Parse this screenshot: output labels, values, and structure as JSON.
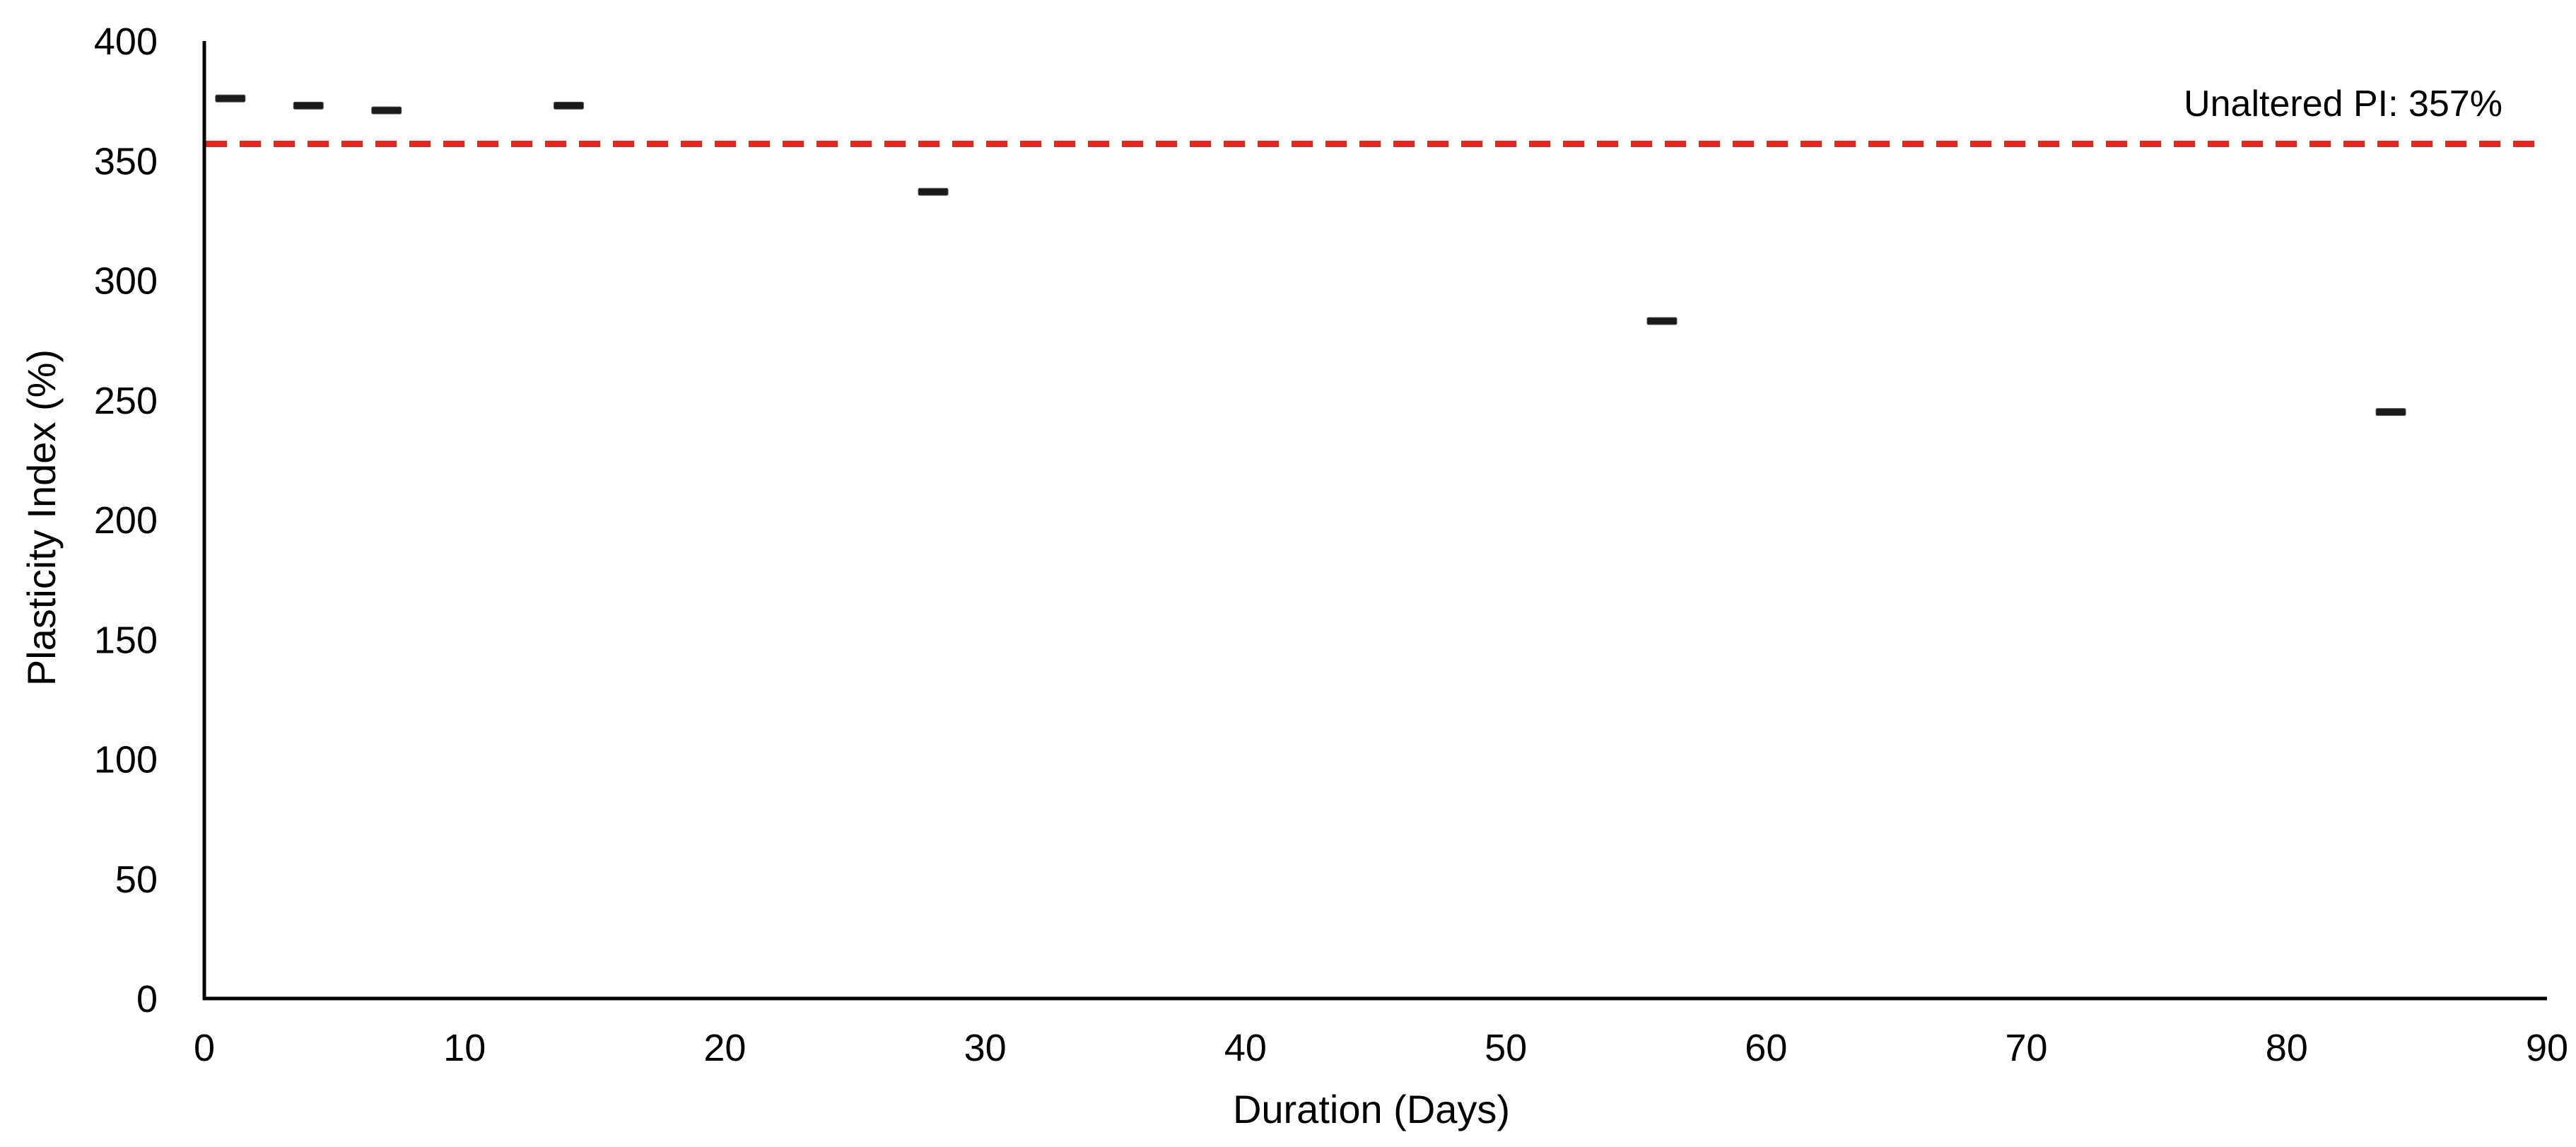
{
  "chart_data": {
    "type": "scatter",
    "title": "",
    "xlabel": "Duration (Days)",
    "ylabel": "Plasticity Index (%)",
    "xlim": [
      0,
      90
    ],
    "ylim": [
      0,
      400
    ],
    "x_ticks": [
      0,
      10,
      20,
      30,
      40,
      50,
      60,
      70,
      80,
      90
    ],
    "y_ticks": [
      0,
      50,
      100,
      150,
      200,
      250,
      300,
      350,
      400
    ],
    "grid": false,
    "marker": "dash",
    "series": [
      {
        "points": [
          {
            "x": 1,
            "y": 376
          },
          {
            "x": 4,
            "y": 373
          },
          {
            "x": 7,
            "y": 371
          },
          {
            "x": 14,
            "y": 373
          },
          {
            "x": 28,
            "y": 337
          },
          {
            "x": 56,
            "y": 283
          },
          {
            "x": 84,
            "y": 245
          }
        ]
      }
    ],
    "reference_line": {
      "y": 357,
      "label": "Unaltered PI: 357%",
      "style": "dashed",
      "color": "#e8251f"
    },
    "colors": {
      "marker": "#1a1a1a",
      "axis": "#000000"
    }
  }
}
